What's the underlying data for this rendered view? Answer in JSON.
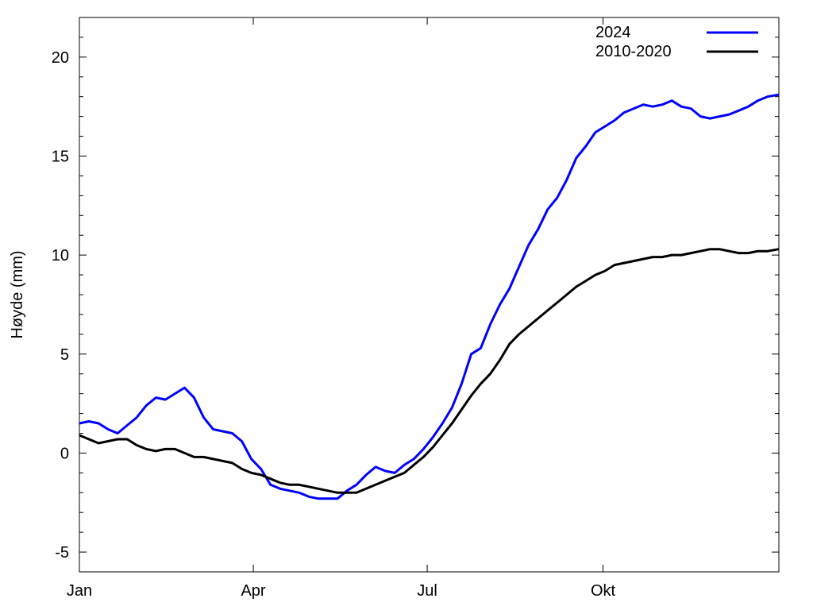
{
  "chart_data": {
    "type": "line",
    "title": "",
    "xlabel": "",
    "ylabel": "Høyde (mm)",
    "xlim": [
      0,
      366
    ],
    "ylim": [
      -6,
      22
    ],
    "x_ticks": [
      {
        "value": 0,
        "label": "Jan"
      },
      {
        "value": 91,
        "label": "Apr"
      },
      {
        "value": 182,
        "label": "Jul"
      },
      {
        "value": 274,
        "label": "Okt"
      }
    ],
    "y_ticks": [
      -5,
      0,
      5,
      10,
      15,
      20
    ],
    "grid": false,
    "legend_position": "top-right",
    "series": [
      {
        "name": "2024",
        "color": "#0000ff",
        "x": [
          0,
          5,
          10,
          15,
          20,
          25,
          30,
          35,
          40,
          45,
          50,
          55,
          60,
          65,
          70,
          75,
          80,
          85,
          90,
          95,
          100,
          105,
          110,
          115,
          120,
          125,
          130,
          135,
          140,
          145,
          150,
          155,
          160,
          165,
          170,
          175,
          180,
          185,
          190,
          195,
          200,
          205,
          210,
          215,
          220,
          225,
          230,
          235,
          240,
          245,
          250,
          255,
          260,
          265,
          270,
          275,
          280,
          285,
          290,
          295,
          300,
          305,
          310,
          315,
          320,
          325,
          330,
          335,
          340,
          345,
          350,
          355,
          360,
          366
        ],
        "y": [
          1.5,
          1.6,
          1.5,
          1.2,
          1.0,
          1.4,
          1.8,
          2.4,
          2.8,
          2.7,
          3.0,
          3.3,
          2.8,
          1.8,
          1.2,
          1.1,
          1.0,
          0.6,
          -0.3,
          -0.8,
          -1.6,
          -1.8,
          -1.9,
          -2.0,
          -2.2,
          -2.3,
          -2.3,
          -2.3,
          -1.9,
          -1.6,
          -1.1,
          -0.7,
          -0.9,
          -1.0,
          -0.6,
          -0.3,
          0.2,
          0.8,
          1.5,
          2.3,
          3.5,
          5.0,
          5.3,
          6.5,
          7.5,
          8.3,
          9.4,
          10.5,
          11.3,
          12.3,
          12.9,
          13.8,
          14.9,
          15.5,
          16.2,
          16.5,
          16.8,
          17.2,
          17.4,
          17.6,
          17.5,
          17.6,
          17.8,
          17.5,
          17.4,
          17.0,
          16.9,
          17.0,
          17.1,
          17.3,
          17.5,
          17.8,
          18.0,
          18.1
        ]
      },
      {
        "name": "2010-2020",
        "color": "#000000",
        "x": [
          0,
          5,
          10,
          15,
          20,
          25,
          30,
          35,
          40,
          45,
          50,
          55,
          60,
          65,
          70,
          75,
          80,
          85,
          90,
          95,
          100,
          105,
          110,
          115,
          120,
          125,
          130,
          135,
          140,
          145,
          150,
          155,
          160,
          165,
          170,
          175,
          180,
          185,
          190,
          195,
          200,
          205,
          210,
          215,
          220,
          225,
          230,
          235,
          240,
          245,
          250,
          255,
          260,
          265,
          270,
          275,
          280,
          285,
          290,
          295,
          300,
          305,
          310,
          315,
          320,
          325,
          330,
          335,
          340,
          345,
          350,
          355,
          360,
          366
        ],
        "y": [
          0.9,
          0.7,
          0.5,
          0.6,
          0.7,
          0.7,
          0.4,
          0.2,
          0.1,
          0.2,
          0.2,
          0.0,
          -0.2,
          -0.2,
          -0.3,
          -0.4,
          -0.5,
          -0.8,
          -1.0,
          -1.1,
          -1.3,
          -1.5,
          -1.6,
          -1.6,
          -1.7,
          -1.8,
          -1.9,
          -2.0,
          -2.0,
          -2.0,
          -1.8,
          -1.6,
          -1.4,
          -1.2,
          -1.0,
          -0.6,
          -0.2,
          0.3,
          0.9,
          1.5,
          2.2,
          2.9,
          3.5,
          4.0,
          4.7,
          5.5,
          6.0,
          6.4,
          6.8,
          7.2,
          7.6,
          8.0,
          8.4,
          8.7,
          9.0,
          9.2,
          9.5,
          9.6,
          9.7,
          9.8,
          9.9,
          9.9,
          10.0,
          10.0,
          10.1,
          10.2,
          10.3,
          10.3,
          10.2,
          10.1,
          10.1,
          10.2,
          10.2,
          10.3
        ]
      }
    ]
  }
}
